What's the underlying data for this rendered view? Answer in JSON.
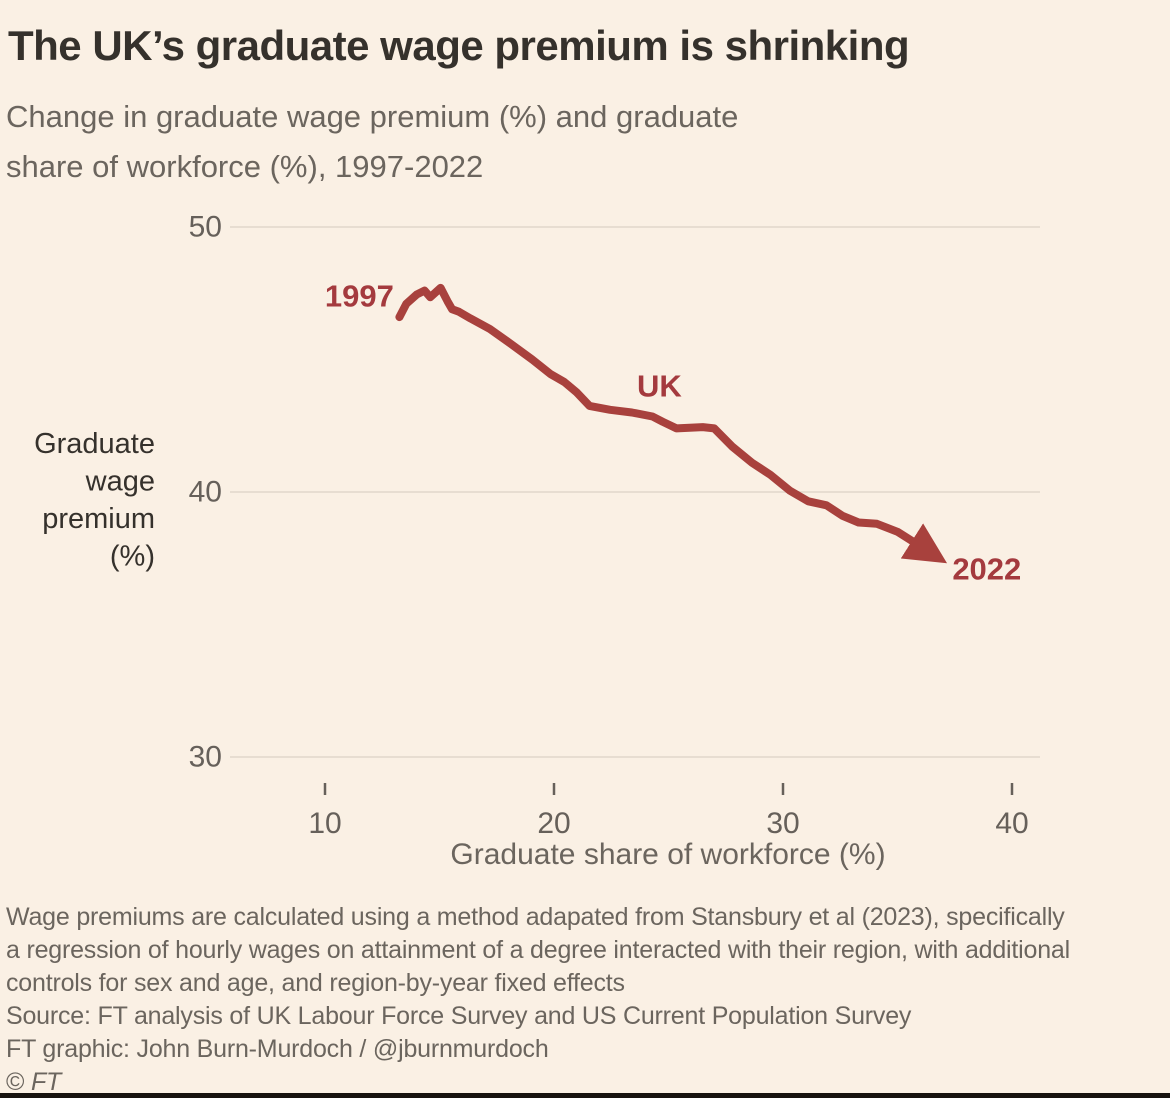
{
  "colors": {
    "background": "#faf0e4",
    "line_red": "#a8413d",
    "label_red": "#a43a3e",
    "grid": "#e7ddd1",
    "axis_text": "#66605a",
    "title_text": "#35312c",
    "body_text": "#6b655e",
    "bottom_bar": "#17130f"
  },
  "chart_data": {
    "type": "line",
    "title": "The UK’s graduate wage premium is shrinking",
    "subtitle_lines": [
      "Change in graduate wage premium (%) and graduate",
      "share of workforce (%), 1997-2022"
    ],
    "xlabel": "Graduate share of workforce (%)",
    "ylabel_lines": [
      "Graduate",
      "wage",
      "premium",
      "(%)"
    ],
    "x_ticks": [
      10,
      20,
      30,
      40
    ],
    "y_ticks": [
      50,
      40,
      30
    ],
    "xlim": [
      5.9,
      41.2
    ],
    "ylim": [
      28.9,
      50.6
    ],
    "grid": "horizontal-only",
    "legend": "none",
    "series": [
      {
        "name": "UK",
        "color": "#a8413d",
        "arrow_end": true,
        "points": [
          [
            13.25,
            46.6
          ],
          [
            13.55,
            47.1
          ],
          [
            14.0,
            47.45
          ],
          [
            14.35,
            47.6
          ],
          [
            14.6,
            47.35
          ],
          [
            15.05,
            47.7
          ],
          [
            15.35,
            47.2
          ],
          [
            15.55,
            46.9
          ],
          [
            15.85,
            46.8
          ],
          [
            16.35,
            46.55
          ],
          [
            17.2,
            46.15
          ],
          [
            18.1,
            45.6
          ],
          [
            19.05,
            45.0
          ],
          [
            19.85,
            44.45
          ],
          [
            20.45,
            44.15
          ],
          [
            21.0,
            43.75
          ],
          [
            21.55,
            43.25
          ],
          [
            22.45,
            43.1
          ],
          [
            23.4,
            43.0
          ],
          [
            24.3,
            42.85
          ],
          [
            24.75,
            42.65
          ],
          [
            25.35,
            42.4
          ],
          [
            26.5,
            42.45
          ],
          [
            27.0,
            42.4
          ],
          [
            27.8,
            41.7
          ],
          [
            28.65,
            41.1
          ],
          [
            29.45,
            40.65
          ],
          [
            30.3,
            40.05
          ],
          [
            31.1,
            39.65
          ],
          [
            31.9,
            39.5
          ],
          [
            32.6,
            39.1
          ],
          [
            33.3,
            38.85
          ],
          [
            34.1,
            38.8
          ],
          [
            35.0,
            38.5
          ],
          [
            36.0,
            37.95
          ],
          [
            36.55,
            37.65
          ]
        ]
      }
    ],
    "annotations": [
      {
        "text": "1997",
        "x": 11.5,
        "y": 47.4
      },
      {
        "text": "UK",
        "x": 24.6,
        "y": 44.0
      },
      {
        "text": "2022",
        "x": 38.9,
        "y": 37.1
      }
    ]
  },
  "notes": {
    "footnote_lines": [
      "Wage premiums are calculated using a method adapated from Stansbury et al (2023), specifically",
      "a regression of hourly wages on attainment of a degree interacted with their region, with additional",
      "controls for sex and age, and region-by-year fixed effects"
    ],
    "source": "Source: FT analysis of UK Labour Force Survey and US Current Population Survey",
    "credit": "FT graphic: John Burn-Murdoch / @jburnmurdoch",
    "copyright_symbol": "©",
    "copyright_name": "FT"
  }
}
